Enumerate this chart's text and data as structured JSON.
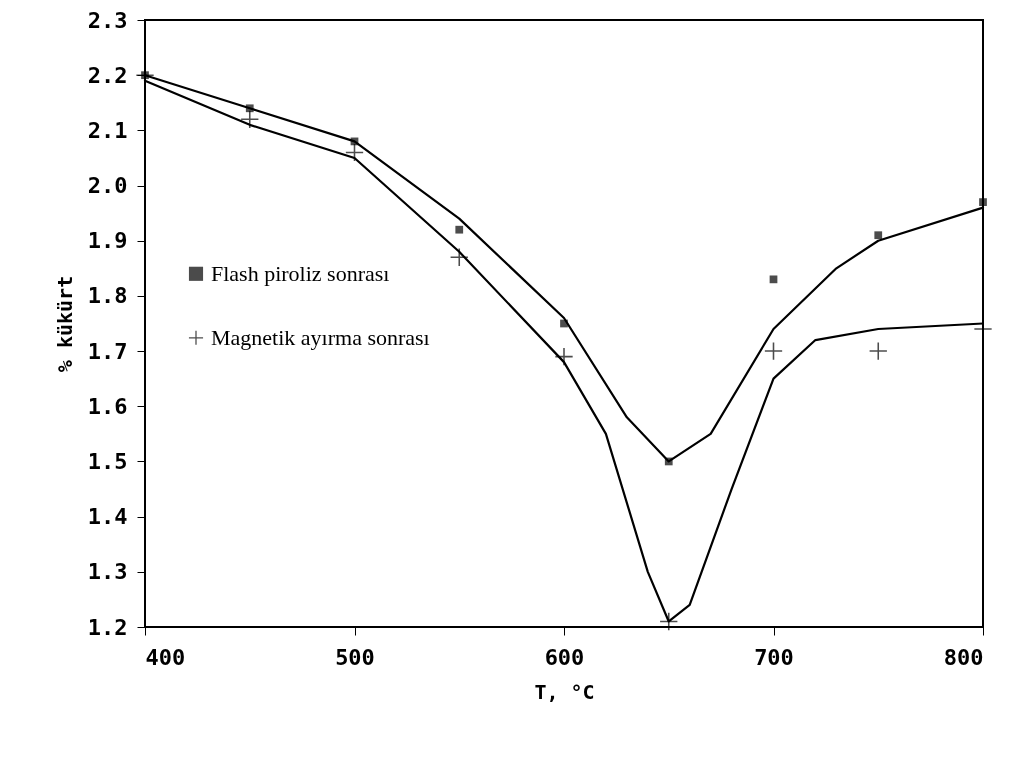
{
  "chart_data": {
    "type": "scatter",
    "xlabel": "T, °C",
    "ylabel": "% kükürt",
    "xlim": [
      400,
      800
    ],
    "xticks": [
      400,
      500,
      600,
      700,
      800
    ],
    "ylim": [
      1.2,
      2.3
    ],
    "yticks": [
      1.2,
      1.3,
      1.4,
      1.5,
      1.6,
      1.7,
      1.8,
      1.9,
      {
        "value": 2.0,
        "label": "2.0"
      },
      2.1,
      2.2,
      2.3
    ],
    "grid": false,
    "legend": "left",
    "series": [
      {
        "type": "line",
        "color": "#000000",
        "marker": "none",
        "line_style": "solid",
        "x": [
          400,
          450,
          500,
          550,
          600,
          630,
          650,
          670,
          700,
          730,
          750,
          800
        ],
        "values": [
          2.2,
          2.14,
          2.08,
          1.94,
          1.76,
          1.58,
          1.5,
          1.55,
          1.74,
          1.85,
          1.9,
          1.96
        ]
      },
      {
        "type": "line",
        "color": "#000000",
        "marker": "none",
        "line_style": "solid",
        "x": [
          400,
          450,
          500,
          550,
          600,
          620,
          640,
          650,
          660,
          680,
          700,
          720,
          750,
          800
        ],
        "values": [
          2.19,
          2.11,
          2.05,
          1.88,
          1.68,
          1.55,
          1.3,
          1.21,
          1.24,
          1.45,
          1.65,
          1.72,
          1.74,
          1.75
        ]
      },
      {
        "name": "Flash piroliz sonrası",
        "color": "#000000",
        "marker": "square",
        "x": [
          400,
          450,
          500,
          550,
          600,
          650,
          700,
          750,
          800
        ],
        "values": [
          2.2,
          2.14,
          2.08,
          1.92,
          1.75,
          1.5,
          1.83,
          1.91,
          1.97
        ]
      },
      {
        "name": "Magnetik ayırma sonrası",
        "color": "#000000",
        "marker": "cross",
        "x": [
          400,
          450,
          500,
          550,
          600,
          650,
          700,
          750,
          800
        ],
        "values": [
          2.2,
          2.12,
          2.06,
          1.87,
          1.69,
          1.21,
          1.7,
          1.7,
          1.74
        ]
      }
    ]
  }
}
